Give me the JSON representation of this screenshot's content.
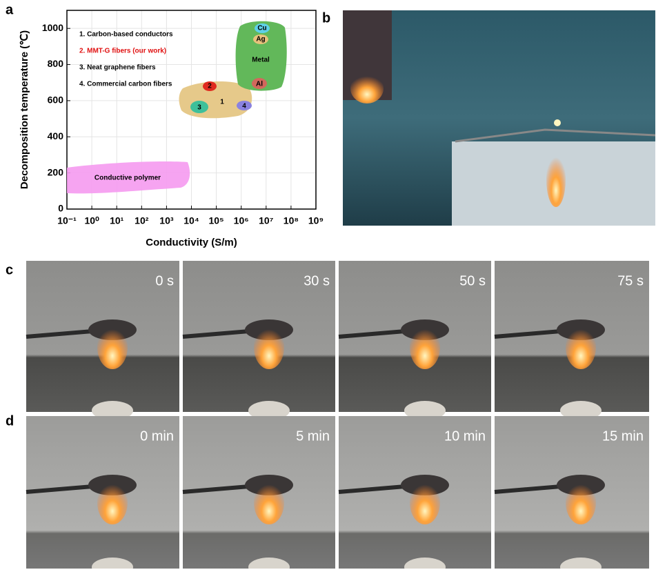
{
  "panel_labels": [
    "a",
    "b",
    "c",
    "d"
  ],
  "chart_data": {
    "type": "region-map",
    "x_label": "Conductivity (S/m)",
    "y_label": "Decomposition temperature (℃)",
    "xlim": [
      0.1,
      1000000000
    ],
    "log_x": true,
    "xticks": [
      {
        "value": 0.1,
        "label": "10⁻¹"
      },
      {
        "value": 1,
        "label": "10⁰"
      },
      {
        "value": 10,
        "label": "10¹"
      },
      {
        "value": 100,
        "label": "10²"
      },
      {
        "value": 1000,
        "label": "10³"
      },
      {
        "value": 10000,
        "label": "10⁴"
      },
      {
        "value": 100000,
        "label": "10⁵"
      },
      {
        "value": 1000000,
        "label": "10⁶"
      },
      {
        "value": 10000000,
        "label": "10⁷"
      },
      {
        "value": 100000000,
        "label": "10⁸"
      },
      {
        "value": 1000000000,
        "label": "10⁹"
      }
    ],
    "ylim": [
      0,
      1100
    ],
    "yticks": [
      0,
      200,
      400,
      600,
      800,
      1000
    ],
    "grid": true,
    "legend": [
      "1.  Carbon-based conductors",
      "2.  MMT-G fibers  (our work)",
      "3.  Neat graphene fibers",
      "4.  Commercial carbon fibers"
    ],
    "region_labels": {
      "polymer": "Conductive polymer",
      "carbon": "1",
      "mmt": "2",
      "graphene": "3",
      "commercial": "4",
      "metal": "Metal",
      "cu": "Cu",
      "ag": "Ag",
      "al": "Al"
    }
  },
  "panel_c": {
    "captions": [
      "0 s",
      "30 s",
      "50 s",
      "75 s"
    ]
  },
  "panel_d": {
    "captions": [
      "0 min",
      "5 min",
      "10 min",
      "15 min"
    ]
  }
}
